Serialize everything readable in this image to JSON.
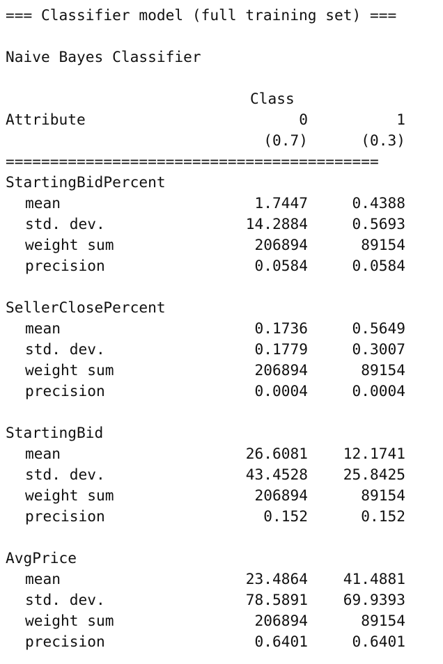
{
  "header": "=== Classifier model (full training set) ===",
  "classifier_name": "Naive Bayes Classifier",
  "table": {
    "class_label": "Class",
    "attribute_label": "Attribute",
    "classes": [
      "0",
      "1"
    ],
    "priors": [
      "(0.7)",
      "(0.3)"
    ],
    "separator": "==========================================",
    "attributes": [
      {
        "name": "StartingBidPercent",
        "stats": [
          {
            "label": "mean",
            "values": [
              "1.7447",
              "0.4388"
            ]
          },
          {
            "label": "std. dev.",
            "values": [
              "14.2884",
              "0.5693"
            ]
          },
          {
            "label": "weight sum",
            "values": [
              "206894",
              "89154"
            ]
          },
          {
            "label": "precision",
            "values": [
              "0.0584",
              "0.0584"
            ]
          }
        ]
      },
      {
        "name": "SellerClosePercent",
        "stats": [
          {
            "label": "mean",
            "values": [
              "0.1736",
              "0.5649"
            ]
          },
          {
            "label": "std. dev.",
            "values": [
              "0.1779",
              "0.3007"
            ]
          },
          {
            "label": "weight sum",
            "values": [
              "206894",
              "89154"
            ]
          },
          {
            "label": "precision",
            "values": [
              "0.0004",
              "0.0004"
            ]
          }
        ]
      },
      {
        "name": "StartingBid",
        "stats": [
          {
            "label": "mean",
            "values": [
              "26.6081",
              "12.1741"
            ]
          },
          {
            "label": "std. dev.",
            "values": [
              "43.4528",
              "25.8425"
            ]
          },
          {
            "label": "weight sum",
            "values": [
              "206894",
              "89154"
            ]
          },
          {
            "label": "precision",
            "values": [
              "0.152",
              "0.152"
            ]
          }
        ]
      },
      {
        "name": "AvgPrice",
        "stats": [
          {
            "label": "mean",
            "values": [
              "23.4864",
              "41.4881"
            ]
          },
          {
            "label": "std. dev.",
            "values": [
              "78.5891",
              "69.9393"
            ]
          },
          {
            "label": "weight sum",
            "values": [
              "206894",
              "89154"
            ]
          },
          {
            "label": "precision",
            "values": [
              "0.6401",
              "0.6401"
            ]
          }
        ]
      }
    ]
  }
}
